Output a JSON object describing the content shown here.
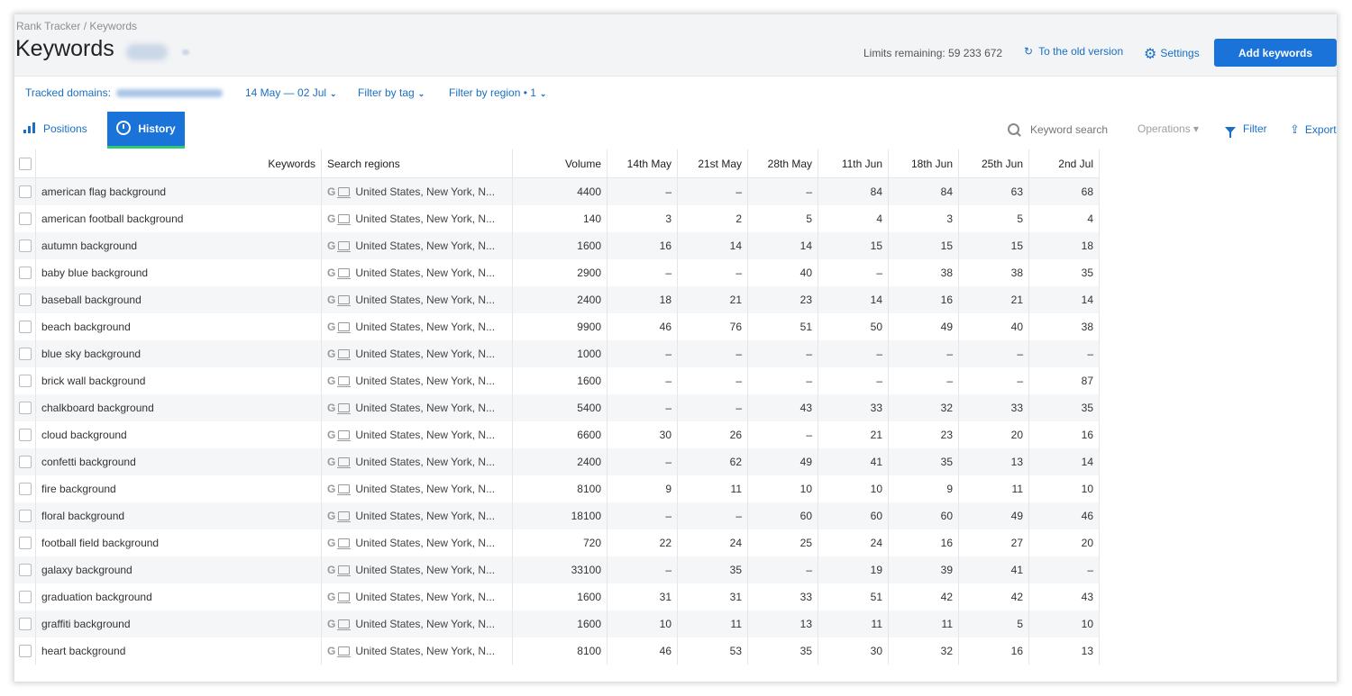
{
  "breadcrumb": "Rank Tracker / Keywords",
  "page_title": "Keywords",
  "limits": "Limits remaining: 59 233 672",
  "old_version": "To the old version",
  "settings": "Settings",
  "add_keywords": "Add keywords",
  "filters": {
    "tracked_domains": "Tracked domains:",
    "date_range": "14 May — 02 Jul",
    "filter_tag": "Filter by tag",
    "filter_region": "Filter by region • 1"
  },
  "tabs": {
    "positions": "Positions",
    "history": "History"
  },
  "toolbar": {
    "search_placeholder": "Keyword search",
    "operations": "Operations",
    "filter": "Filter",
    "export": "Export"
  },
  "table": {
    "headers": {
      "keywords": "Keywords",
      "regions": "Search regions",
      "volume": "Volume",
      "dates": [
        "14th May",
        "21st May",
        "28th May",
        "11th Jun",
        "18th Jun",
        "25th Jun",
        "2nd Jul"
      ]
    },
    "region_value": "United States, New York, N...",
    "rows": [
      {
        "keyword": "american flag background",
        "volume": "4400",
        "pos": [
          "–",
          "–",
          "–",
          "84",
          "84",
          "63",
          "68"
        ]
      },
      {
        "keyword": "american football background",
        "volume": "140",
        "pos": [
          "3",
          "2",
          "5",
          "4",
          "3",
          "5",
          "4"
        ]
      },
      {
        "keyword": "autumn background",
        "volume": "1600",
        "pos": [
          "16",
          "14",
          "14",
          "15",
          "15",
          "15",
          "18"
        ]
      },
      {
        "keyword": "baby blue background",
        "volume": "2900",
        "pos": [
          "–",
          "–",
          "40",
          "–",
          "38",
          "38",
          "35"
        ]
      },
      {
        "keyword": "baseball background",
        "volume": "2400",
        "pos": [
          "18",
          "21",
          "23",
          "14",
          "16",
          "21",
          "14"
        ]
      },
      {
        "keyword": "beach background",
        "volume": "9900",
        "pos": [
          "46",
          "76",
          "51",
          "50",
          "49",
          "40",
          "38"
        ]
      },
      {
        "keyword": "blue sky background",
        "volume": "1000",
        "pos": [
          "–",
          "–",
          "–",
          "–",
          "–",
          "–",
          "–"
        ]
      },
      {
        "keyword": "brick wall background",
        "volume": "1600",
        "pos": [
          "–",
          "–",
          "–",
          "–",
          "–",
          "–",
          "87"
        ]
      },
      {
        "keyword": "chalkboard background",
        "volume": "5400",
        "pos": [
          "–",
          "–",
          "43",
          "33",
          "32",
          "33",
          "35"
        ]
      },
      {
        "keyword": "cloud background",
        "volume": "6600",
        "pos": [
          "30",
          "26",
          "–",
          "21",
          "23",
          "20",
          "16"
        ]
      },
      {
        "keyword": "confetti background",
        "volume": "2400",
        "pos": [
          "–",
          "62",
          "49",
          "41",
          "35",
          "13",
          "14"
        ]
      },
      {
        "keyword": "fire background",
        "volume": "8100",
        "pos": [
          "9",
          "11",
          "10",
          "10",
          "9",
          "11",
          "10"
        ]
      },
      {
        "keyword": "floral background",
        "volume": "18100",
        "pos": [
          "–",
          "–",
          "60",
          "60",
          "60",
          "49",
          "46"
        ]
      },
      {
        "keyword": "football field background",
        "volume": "720",
        "pos": [
          "22",
          "24",
          "25",
          "24",
          "16",
          "27",
          "20"
        ]
      },
      {
        "keyword": "galaxy background",
        "volume": "33100",
        "pos": [
          "–",
          "35",
          "–",
          "19",
          "39",
          "41",
          "–"
        ]
      },
      {
        "keyword": "graduation background",
        "volume": "1600",
        "pos": [
          "31",
          "31",
          "33",
          "51",
          "42",
          "42",
          "43"
        ]
      },
      {
        "keyword": "graffiti background",
        "volume": "1600",
        "pos": [
          "10",
          "11",
          "13",
          "11",
          "11",
          "5",
          "10"
        ]
      },
      {
        "keyword": "heart background",
        "volume": "8100",
        "pos": [
          "46",
          "53",
          "35",
          "30",
          "32",
          "16",
          "13"
        ]
      }
    ]
  }
}
